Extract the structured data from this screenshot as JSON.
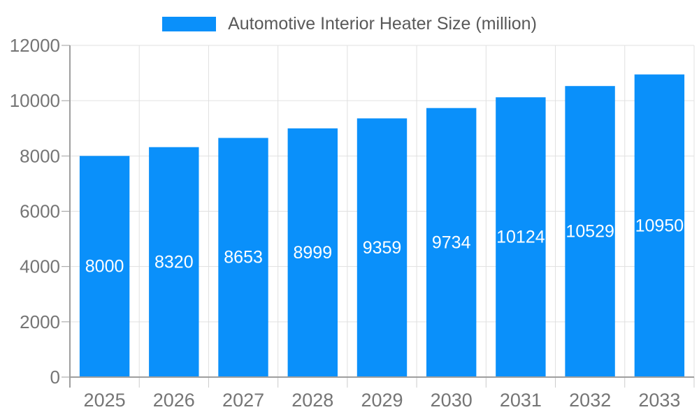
{
  "legend": {
    "label": "Automotive Interior Heater Size (million)"
  },
  "chart_data": {
    "type": "bar",
    "title": "Automotive Interior Heater Size (million)",
    "categories": [
      "2025",
      "2026",
      "2027",
      "2028",
      "2029",
      "2030",
      "2031",
      "2032",
      "2033"
    ],
    "values": [
      8000,
      8320,
      8653,
      8999,
      9359,
      9734,
      10124,
      10529,
      10950
    ],
    "xlabel": "",
    "ylabel": "",
    "ylim": [
      0,
      12000
    ],
    "yticks": [
      0,
      2000,
      4000,
      6000,
      8000,
      10000,
      12000
    ],
    "grid": true,
    "legend_position": "top-center",
    "bar_labels_inside": true
  },
  "colors": {
    "bar": "#0a90fa",
    "bar_label": "#ffffff",
    "legend_text": "#595959",
    "axis_text": "#757575",
    "gridline": "#e0e0e0",
    "axis_line": "#9e9e9e",
    "category_tick": "#cccccc"
  }
}
